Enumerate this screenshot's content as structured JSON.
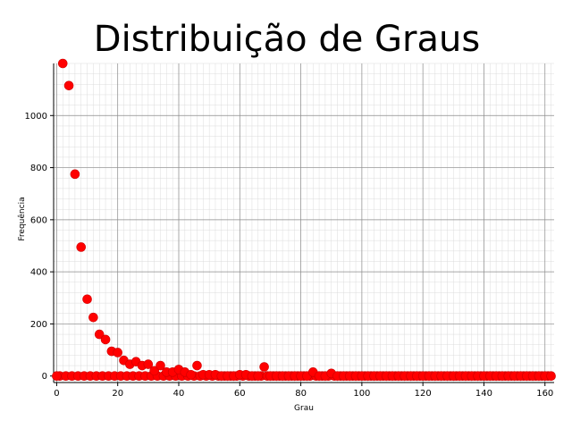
{
  "chart_data": {
    "type": "scatter",
    "title": "Distribuição de Graus",
    "xlabel": "Grau",
    "ylabel": "Frequência",
    "xlim": [
      -1,
      163
    ],
    "ylim": [
      -25,
      1200
    ],
    "xticks": [
      0,
      20,
      40,
      60,
      80,
      100,
      120,
      140,
      160
    ],
    "yticks": [
      0,
      200,
      400,
      600,
      800,
      1000
    ],
    "x_minor_step": 2,
    "y_minor_step": 40,
    "grid": true,
    "marker_color": "#ff0000",
    "marker_edge_color": "#cc0000",
    "x": [
      0,
      2,
      4,
      6,
      8,
      10,
      12,
      14,
      16,
      18,
      20,
      22,
      24,
      26,
      28,
      30,
      32,
      34,
      36,
      38,
      40,
      42,
      44,
      46,
      48,
      50,
      52,
      54,
      56,
      58,
      60,
      62,
      64,
      66,
      68,
      70,
      72,
      74,
      76,
      78,
      80,
      82,
      84,
      86,
      88,
      90,
      92,
      94,
      96,
      98,
      100,
      102,
      104,
      106,
      108,
      110,
      112,
      114,
      116,
      118,
      120,
      122,
      124,
      126,
      128,
      130,
      132,
      134,
      136,
      138,
      140,
      142,
      144,
      146,
      148,
      150,
      152,
      154,
      156,
      158,
      160,
      162
    ],
    "y": [
      0,
      1200,
      1115,
      775,
      495,
      295,
      225,
      160,
      140,
      95,
      90,
      60,
      45,
      55,
      40,
      45,
      20,
      40,
      15,
      15,
      25,
      15,
      5,
      40,
      5,
      5,
      5,
      0,
      0,
      0,
      5,
      5,
      0,
      0,
      35,
      0,
      0,
      0,
      0,
      0,
      0,
      0,
      15,
      0,
      0,
      10,
      0,
      0,
      0,
      0,
      0,
      0,
      0,
      0,
      0,
      0,
      0,
      0,
      0,
      0,
      0,
      0,
      0,
      0,
      0,
      0,
      0,
      0,
      0,
      0,
      0,
      0,
      0,
      0,
      0,
      0,
      0,
      0,
      0,
      0,
      0,
      0
    ],
    "zero_markers_x": [
      1,
      3,
      5,
      7,
      9,
      11,
      13,
      15,
      17,
      19,
      21,
      23,
      25,
      27,
      29,
      31,
      33,
      35,
      37,
      39,
      41,
      43,
      45,
      47,
      49,
      51,
      53,
      55,
      57,
      59,
      61,
      63,
      65,
      67,
      69,
      71,
      73,
      75,
      77,
      79,
      81,
      83,
      85,
      87,
      89,
      91,
      93,
      95,
      97,
      99,
      101,
      103,
      105,
      107,
      109,
      111,
      113,
      115,
      117,
      119,
      121,
      123,
      125,
      127,
      129,
      131,
      133,
      135,
      137,
      139,
      141,
      143,
      145,
      147,
      149,
      151,
      153,
      155,
      157,
      159,
      161
    ]
  }
}
